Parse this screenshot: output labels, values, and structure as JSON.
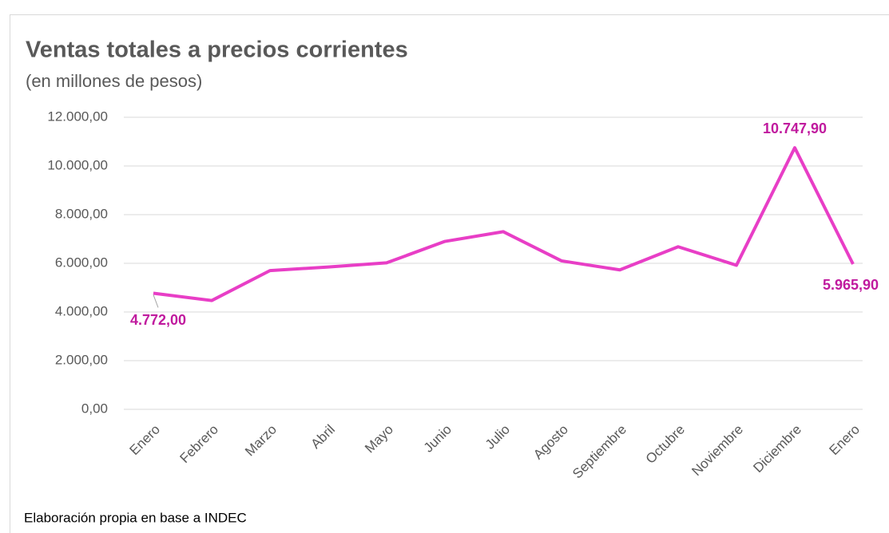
{
  "chart_data": {
    "type": "line",
    "title": "Ventas totales a precios corrientes",
    "subtitle": "(en millones de pesos)",
    "source": "Elaboración propia en base a INDEC",
    "categories": [
      "Enero",
      "Febrero",
      "Marzo",
      "Abril",
      "Mayo",
      "Junio",
      "Julio",
      "Agosto",
      "Septiembre",
      "Octubre",
      "Noviembre",
      "Diciembre",
      "Enero"
    ],
    "series": [
      {
        "name": "Ventas totales",
        "color": "#e83ec6",
        "label_color": "#c01a9e",
        "values": [
          4772.0,
          4470,
          5700,
          5850,
          6020,
          6900,
          7300,
          6100,
          5730,
          6680,
          5920,
          10747.9,
          5965.9
        ],
        "value_labels": [
          "4.772,00",
          null,
          null,
          null,
          null,
          null,
          null,
          null,
          null,
          null,
          null,
          "10.747,90",
          "5.965,90"
        ]
      }
    ],
    "ylim": [
      0,
      12000
    ],
    "yticks": [
      {
        "value": 0,
        "label": "0,00"
      },
      {
        "value": 2000,
        "label": "2.000,00"
      },
      {
        "value": 4000,
        "label": "4.000,00"
      },
      {
        "value": 6000,
        "label": "6.000,00"
      },
      {
        "value": 8000,
        "label": "8.000,00"
      },
      {
        "value": 10000,
        "label": "10.000,00"
      },
      {
        "value": 12000,
        "label": "12.000,00"
      }
    ],
    "grid": true
  }
}
